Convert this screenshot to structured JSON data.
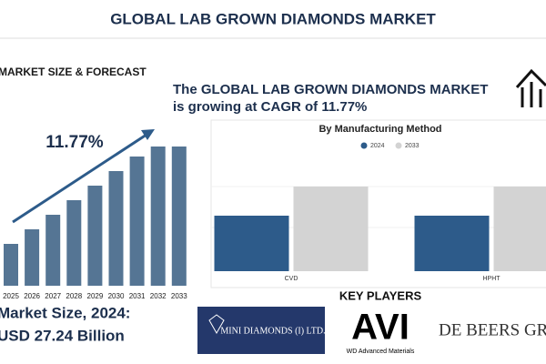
{
  "title": "GLOBAL LAB GROWN DIAMONDS MARKET",
  "headline": {
    "line1": "The GLOBAL LAB GROWN DIAMONDS MARKET",
    "line2": "is growing at CAGR of 11.77%"
  },
  "market_size": {
    "label": "Market Size, 2024:",
    "value": "USD 27.24 Billion"
  },
  "chart_data": [
    {
      "type": "bar",
      "title": "MARKET SIZE & FORECAST",
      "annotation": "11.77%",
      "categories": [
        "2025",
        "2026",
        "2027",
        "2028",
        "2029",
        "2030",
        "2031",
        "2032",
        "2033"
      ],
      "values": [
        46,
        62,
        78,
        94,
        110,
        126,
        142,
        153,
        153
      ],
      "color": "#557594",
      "ylim": [
        0,
        160
      ]
    },
    {
      "type": "grouped_bar",
      "title": "By Manufacturing Method",
      "categories": [
        "CVD",
        "HPHT"
      ],
      "series": [
        {
          "name": "2024",
          "color": "#2d5b8a",
          "values": [
            61,
            61
          ]
        },
        {
          "name": "2033",
          "color": "#d3d3d3",
          "values": [
            93,
            93
          ]
        }
      ],
      "ylim": [
        0,
        150
      ],
      "legend": "top"
    }
  ],
  "key_players": {
    "title": "KEY PLAYERS",
    "players": [
      "MINI DIAMONDS (I) LTD.",
      "AVI",
      "WD Advanced Materials",
      "DE BEERS GRO"
    ]
  }
}
